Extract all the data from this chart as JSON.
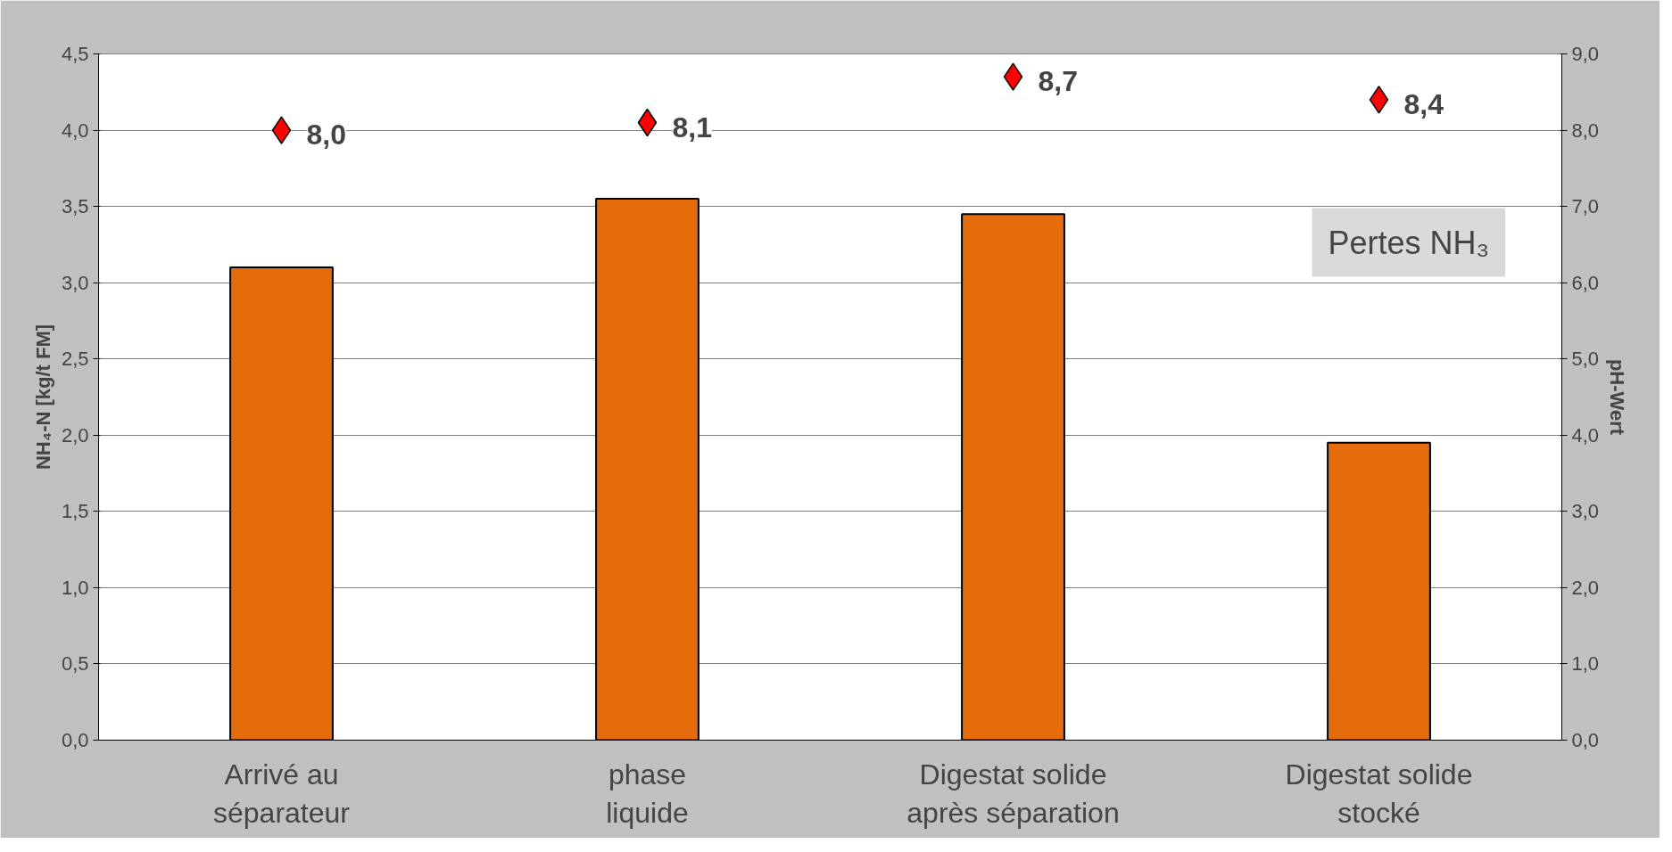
{
  "chart_data": {
    "type": "bar",
    "categories": [
      "Arrivé au\nséparateur",
      "phase\nliquide",
      "Digestat solide\naprès séparation",
      "Digestat solide\nstocké"
    ],
    "series": [
      {
        "color": "#e46c0a",
        "values": [
          3.1,
          3.55,
          3.45,
          1.95
        ]
      },
      {
        "type": "scatter",
        "axis": "y2",
        "color": "#ff0000",
        "marker": "diamond",
        "values": [
          8.0,
          8.1,
          8.7,
          8.4
        ],
        "value_labels": [
          "8,0",
          "8,1",
          "8,7",
          "8,4"
        ]
      }
    ],
    "ylabel": "NH₄-N [kg/t FM]",
    "y2label": "pH-Wert",
    "ylim": [
      0,
      4.5
    ],
    "yticks": [
      {
        "value": 0,
        "label": "0,0"
      },
      {
        "value": 0.5,
        "label": "0,5"
      },
      {
        "value": 1,
        "label": "1,0"
      },
      {
        "value": 1.5,
        "label": "1,5"
      },
      {
        "value": 2,
        "label": "2,0"
      },
      {
        "value": 2.5,
        "label": "2,5"
      },
      {
        "value": 3,
        "label": "3,0"
      },
      {
        "value": 3.5,
        "label": "3,5"
      },
      {
        "value": 4,
        "label": "4,0"
      },
      {
        "value": 4.5,
        "label": "4,5"
      }
    ],
    "y2lim": [
      0,
      9
    ],
    "y2ticks": [
      {
        "value": 0,
        "label": "0,0"
      },
      {
        "value": 1,
        "label": "1,0"
      },
      {
        "value": 2,
        "label": "2,0"
      },
      {
        "value": 3,
        "label": "3,0"
      },
      {
        "value": 4,
        "label": "4,0"
      },
      {
        "value": 5,
        "label": "5,0"
      },
      {
        "value": 6,
        "label": "6,0"
      },
      {
        "value": 7,
        "label": "7,0"
      },
      {
        "value": 8,
        "label": "8,0"
      },
      {
        "value": 9,
        "label": "9,0"
      }
    ],
    "annotations": [
      "Pertes NH₃"
    ],
    "grid": "y"
  }
}
